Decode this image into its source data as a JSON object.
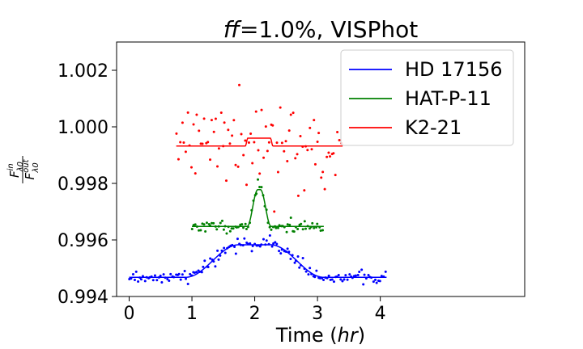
{
  "chart_data": {
    "type": "scatter",
    "title": "ff=1.0%, VISPhot",
    "title_italic_part": "ff",
    "title_rest": "=1.0%, VISPhot",
    "xlabel": "Time (hr)",
    "xlabel_main": "Time (",
    "xlabel_italic": "hr",
    "xlabel_close": ")",
    "ylabel": "F_in_λ0 / F_out_λ0",
    "xlim": [
      -0.2,
      6.3
    ],
    "ylim": [
      0.994,
      1.003
    ],
    "xticks": [
      0,
      1,
      2,
      3,
      4
    ],
    "xtick_labels": [
      "0",
      "1",
      "2",
      "3",
      "4"
    ],
    "yticks": [
      0.994,
      0.996,
      0.998,
      1.0,
      1.002
    ],
    "ytick_labels": [
      "0.994",
      "0.996",
      "0.998",
      "1.000",
      "1.002"
    ],
    "legend_position": "top-right",
    "series": [
      {
        "name": "HD 17156",
        "color": "#0000ff",
        "x_range": [
          0.0,
          4.1
        ],
        "n_points": 150,
        "noise": 0.00011,
        "seed": 17,
        "model": {
          "baseline": 0.99468,
          "depth": 0.00115,
          "center": 2.0,
          "plateau_halfwidth": 0.25,
          "ramp": 0.85
        }
      },
      {
        "name": "HAT-P-11",
        "color": "#008000",
        "x_range": [
          1.0,
          3.1
        ],
        "n_points": 80,
        "noise": 0.0001,
        "seed": 11,
        "model": {
          "baseline": 0.99648,
          "depth": 0.0013,
          "center": 2.07,
          "plateau_halfwidth": 0.02,
          "ramp": 0.17
        }
      },
      {
        "name": "K2-21",
        "color": "#ff0000",
        "x_range": [
          0.75,
          3.4
        ],
        "n_points": 90,
        "noise": 0.00075,
        "seed": 21,
        "model": {
          "baseline": 0.99932,
          "depth": 0.00028,
          "center": 2.07,
          "plateau_halfwidth": 0.18,
          "ramp": 0.04
        }
      }
    ]
  }
}
